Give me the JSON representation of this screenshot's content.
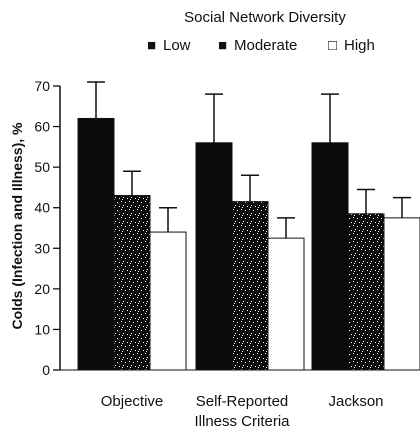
{
  "chart_data": {
    "type": "bar",
    "legend": {
      "title": "Social Network Diversity",
      "placement": "top",
      "items": [
        {
          "label": "Low",
          "marker": "■"
        },
        {
          "label": "Moderate",
          "marker": "■"
        },
        {
          "label": "High",
          "marker": "□"
        }
      ]
    },
    "ylabel": "Colds (Infection and Illness), %",
    "ylim": [
      0,
      70
    ],
    "yticks": [
      0,
      10,
      20,
      30,
      40,
      50,
      60,
      70
    ],
    "grid": false,
    "categories": [
      "Objective",
      "Self-Reported Illness Criteria",
      "Jackson"
    ],
    "category_lines": [
      [
        "Objective"
      ],
      [
        "Self-Reported",
        "Illness Criteria"
      ],
      [
        "Jackson"
      ]
    ],
    "series": [
      {
        "name": "Low",
        "values": [
          62,
          56,
          56
        ],
        "error": [
          9,
          12,
          12
        ],
        "fill": "#0a0a0a",
        "pattern": "solid"
      },
      {
        "name": "Moderate",
        "values": [
          43,
          41.5,
          38.5
        ],
        "error": [
          6,
          6.5,
          6
        ],
        "fill": "#0a0a0a",
        "pattern": "speckle"
      },
      {
        "name": "High",
        "values": [
          34,
          32.5,
          37.5
        ],
        "error": [
          6,
          5,
          5
        ],
        "fill": "#ffffff",
        "pattern": "none"
      }
    ]
  }
}
